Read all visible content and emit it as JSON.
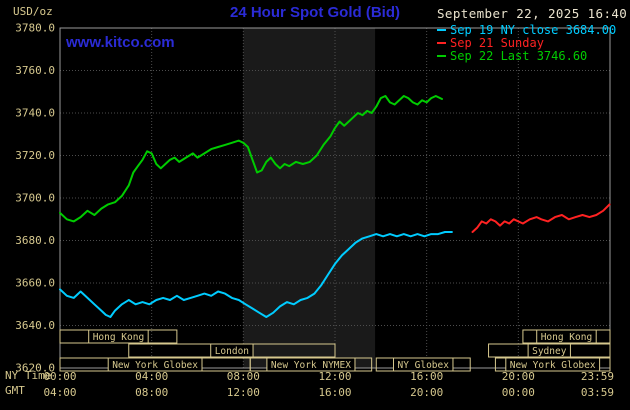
{
  "header": {
    "unit_label": "USD/oz",
    "title": "24 Hour Spot Gold (Bid)",
    "datetime": "September 22, 2025 16:40",
    "watermark": "www.kitco.com"
  },
  "legend": [
    {
      "label": "Sep 19 NY close 3684.00",
      "color": "#00ccff"
    },
    {
      "label": "Sep 21 Sunday",
      "color": "#ff2222"
    },
    {
      "label": "Sep 22 Last 3746.60",
      "color": "#00cc00"
    }
  ],
  "axes": {
    "ny_time_label": "NY Time",
    "gmt_label": "GMT",
    "ny_ticks": [
      "00:00",
      "04:00",
      "08:00",
      "12:00",
      "16:00",
      "20:00",
      "23:59"
    ],
    "gmt_ticks": [
      "04:00",
      "08:00",
      "12:00",
      "16:00",
      "20:00",
      "00:00",
      "03:59"
    ],
    "y_ticks": [
      "3780.0",
      "3760.0",
      "3740.0",
      "3720.0",
      "3700.0",
      "3680.0",
      "3660.0",
      "3640.0",
      "3620.0"
    ]
  },
  "colors": {
    "background": "#000000",
    "tan": "#d6c88e",
    "grid": "#4d4d4d",
    "frame": "#9a9a9a",
    "session_band": "#1a1a1a",
    "title_blue": "#2b2bd6",
    "date_text": "#e9e2cd"
  },
  "chart_data": {
    "type": "line",
    "title": "24 Hour Spot Gold (Bid)",
    "xlabel": "NY Time",
    "ylabel": "USD/oz",
    "x_range_hours": [
      0,
      24
    ],
    "ylim": [
      3620,
      3780
    ],
    "y_tick_step": 20,
    "grid": true,
    "legend_position": "top-right",
    "highlight_band_hours": [
      8.0,
      13.75
    ],
    "series": [
      {
        "id": "sep19",
        "name": "Sep 19 NY close 3684.00",
        "color": "#00ccff",
        "points": [
          [
            0,
            3657
          ],
          [
            0.3,
            3654
          ],
          [
            0.6,
            3653
          ],
          [
            0.9,
            3656
          ],
          [
            1.2,
            3653
          ],
          [
            1.5,
            3650
          ],
          [
            1.8,
            3647
          ],
          [
            2,
            3645
          ],
          [
            2.2,
            3644
          ],
          [
            2.4,
            3647
          ],
          [
            2.7,
            3650
          ],
          [
            3,
            3652
          ],
          [
            3.3,
            3650
          ],
          [
            3.6,
            3651
          ],
          [
            3.9,
            3650
          ],
          [
            4.2,
            3652
          ],
          [
            4.5,
            3653
          ],
          [
            4.8,
            3652
          ],
          [
            5.1,
            3654
          ],
          [
            5.4,
            3652
          ],
          [
            5.7,
            3653
          ],
          [
            6,
            3654
          ],
          [
            6.3,
            3655
          ],
          [
            6.6,
            3654
          ],
          [
            6.9,
            3656
          ],
          [
            7.2,
            3655
          ],
          [
            7.5,
            3653
          ],
          [
            7.8,
            3652
          ],
          [
            8.1,
            3650
          ],
          [
            8.4,
            3648
          ],
          [
            8.7,
            3646
          ],
          [
            9,
            3644
          ],
          [
            9.3,
            3646
          ],
          [
            9.6,
            3649
          ],
          [
            9.9,
            3651
          ],
          [
            10.2,
            3650
          ],
          [
            10.5,
            3652
          ],
          [
            10.8,
            3653
          ],
          [
            11.1,
            3655
          ],
          [
            11.4,
            3659
          ],
          [
            11.7,
            3664
          ],
          [
            12,
            3669
          ],
          [
            12.3,
            3673
          ],
          [
            12.6,
            3676
          ],
          [
            12.9,
            3679
          ],
          [
            13.2,
            3681
          ],
          [
            13.5,
            3682
          ],
          [
            13.8,
            3683
          ],
          [
            14.1,
            3682
          ],
          [
            14.4,
            3683
          ],
          [
            14.7,
            3682
          ],
          [
            15,
            3683
          ],
          [
            15.3,
            3682
          ],
          [
            15.6,
            3683
          ],
          [
            15.9,
            3682
          ],
          [
            16.2,
            3683
          ],
          [
            16.5,
            3683
          ],
          [
            16.8,
            3684
          ],
          [
            17.1,
            3684
          ]
        ]
      },
      {
        "id": "sep21",
        "name": "Sep 21 Sunday",
        "color": "#ff2222",
        "points": [
          [
            18,
            3684
          ],
          [
            18.2,
            3686
          ],
          [
            18.4,
            3689
          ],
          [
            18.6,
            3688
          ],
          [
            18.8,
            3690
          ],
          [
            19,
            3689
          ],
          [
            19.2,
            3687
          ],
          [
            19.4,
            3689
          ],
          [
            19.6,
            3688
          ],
          [
            19.8,
            3690
          ],
          [
            20,
            3689
          ],
          [
            20.2,
            3688
          ],
          [
            20.5,
            3690
          ],
          [
            20.8,
            3691
          ],
          [
            21,
            3690
          ],
          [
            21.3,
            3689
          ],
          [
            21.6,
            3691
          ],
          [
            21.9,
            3692
          ],
          [
            22.2,
            3690
          ],
          [
            22.5,
            3691
          ],
          [
            22.8,
            3692
          ],
          [
            23.1,
            3691
          ],
          [
            23.4,
            3692
          ],
          [
            23.7,
            3694
          ],
          [
            23.983,
            3697
          ]
        ]
      },
      {
        "id": "sep22",
        "name": "Sep 22 Last 3746.60",
        "color": "#00cc00",
        "points": [
          [
            0,
            3693
          ],
          [
            0.3,
            3690
          ],
          [
            0.6,
            3689
          ],
          [
            0.9,
            3691
          ],
          [
            1.2,
            3694
          ],
          [
            1.5,
            3692
          ],
          [
            1.8,
            3695
          ],
          [
            2.1,
            3697
          ],
          [
            2.4,
            3698
          ],
          [
            2.7,
            3701
          ],
          [
            3,
            3706
          ],
          [
            3.2,
            3712
          ],
          [
            3.4,
            3715
          ],
          [
            3.6,
            3718
          ],
          [
            3.8,
            3722
          ],
          [
            4,
            3721
          ],
          [
            4.2,
            3716
          ],
          [
            4.4,
            3714
          ],
          [
            4.6,
            3716
          ],
          [
            4.8,
            3718
          ],
          [
            5,
            3719
          ],
          [
            5.2,
            3717
          ],
          [
            5.5,
            3719
          ],
          [
            5.8,
            3721
          ],
          [
            6,
            3719
          ],
          [
            6.3,
            3721
          ],
          [
            6.6,
            3723
          ],
          [
            6.9,
            3724
          ],
          [
            7.2,
            3725
          ],
          [
            7.5,
            3726
          ],
          [
            7.8,
            3727
          ],
          [
            8,
            3726
          ],
          [
            8.2,
            3724
          ],
          [
            8.4,
            3718
          ],
          [
            8.6,
            3712
          ],
          [
            8.8,
            3713
          ],
          [
            9,
            3717
          ],
          [
            9.2,
            3719
          ],
          [
            9.4,
            3716
          ],
          [
            9.6,
            3714
          ],
          [
            9.8,
            3716
          ],
          [
            10,
            3715
          ],
          [
            10.3,
            3717
          ],
          [
            10.6,
            3716
          ],
          [
            10.9,
            3717
          ],
          [
            11.2,
            3720
          ],
          [
            11.5,
            3725
          ],
          [
            11.8,
            3729
          ],
          [
            12,
            3733
          ],
          [
            12.2,
            3736
          ],
          [
            12.4,
            3734
          ],
          [
            12.6,
            3736
          ],
          [
            12.8,
            3738
          ],
          [
            13,
            3740
          ],
          [
            13.2,
            3739
          ],
          [
            13.4,
            3741
          ],
          [
            13.6,
            3740
          ],
          [
            13.8,
            3743
          ],
          [
            14,
            3747
          ],
          [
            14.2,
            3748
          ],
          [
            14.4,
            3745
          ],
          [
            14.6,
            3744
          ],
          [
            14.8,
            3746
          ],
          [
            15,
            3748
          ],
          [
            15.2,
            3747
          ],
          [
            15.4,
            3745
          ],
          [
            15.6,
            3744
          ],
          [
            15.8,
            3746
          ],
          [
            16,
            3745
          ],
          [
            16.2,
            3747
          ],
          [
            16.4,
            3748
          ],
          [
            16.67,
            3746.6
          ]
        ]
      }
    ],
    "sessions": [
      {
        "label": "Hong Kong",
        "row": 0,
        "start": 0.0,
        "end": 5.1
      },
      {
        "label": "Hong Kong",
        "row": 0,
        "start": 20.2,
        "end": 24.0
      },
      {
        "label": "London",
        "row": 1,
        "start": 3.0,
        "end": 12.0
      },
      {
        "label": "Sydney",
        "row": 1,
        "start": 18.7,
        "end": 24.0
      },
      {
        "label": "New York Globex",
        "row": 2,
        "start": 0.0,
        "end": 8.3
      },
      {
        "label": "New York NYMEX",
        "row": 2,
        "start": 8.3,
        "end": 13.6
      },
      {
        "label": "NY Globex",
        "row": 2,
        "start": 13.8,
        "end": 17.9
      },
      {
        "label": "New York Globex",
        "row": 2,
        "start": 19.0,
        "end": 24.0
      }
    ]
  }
}
